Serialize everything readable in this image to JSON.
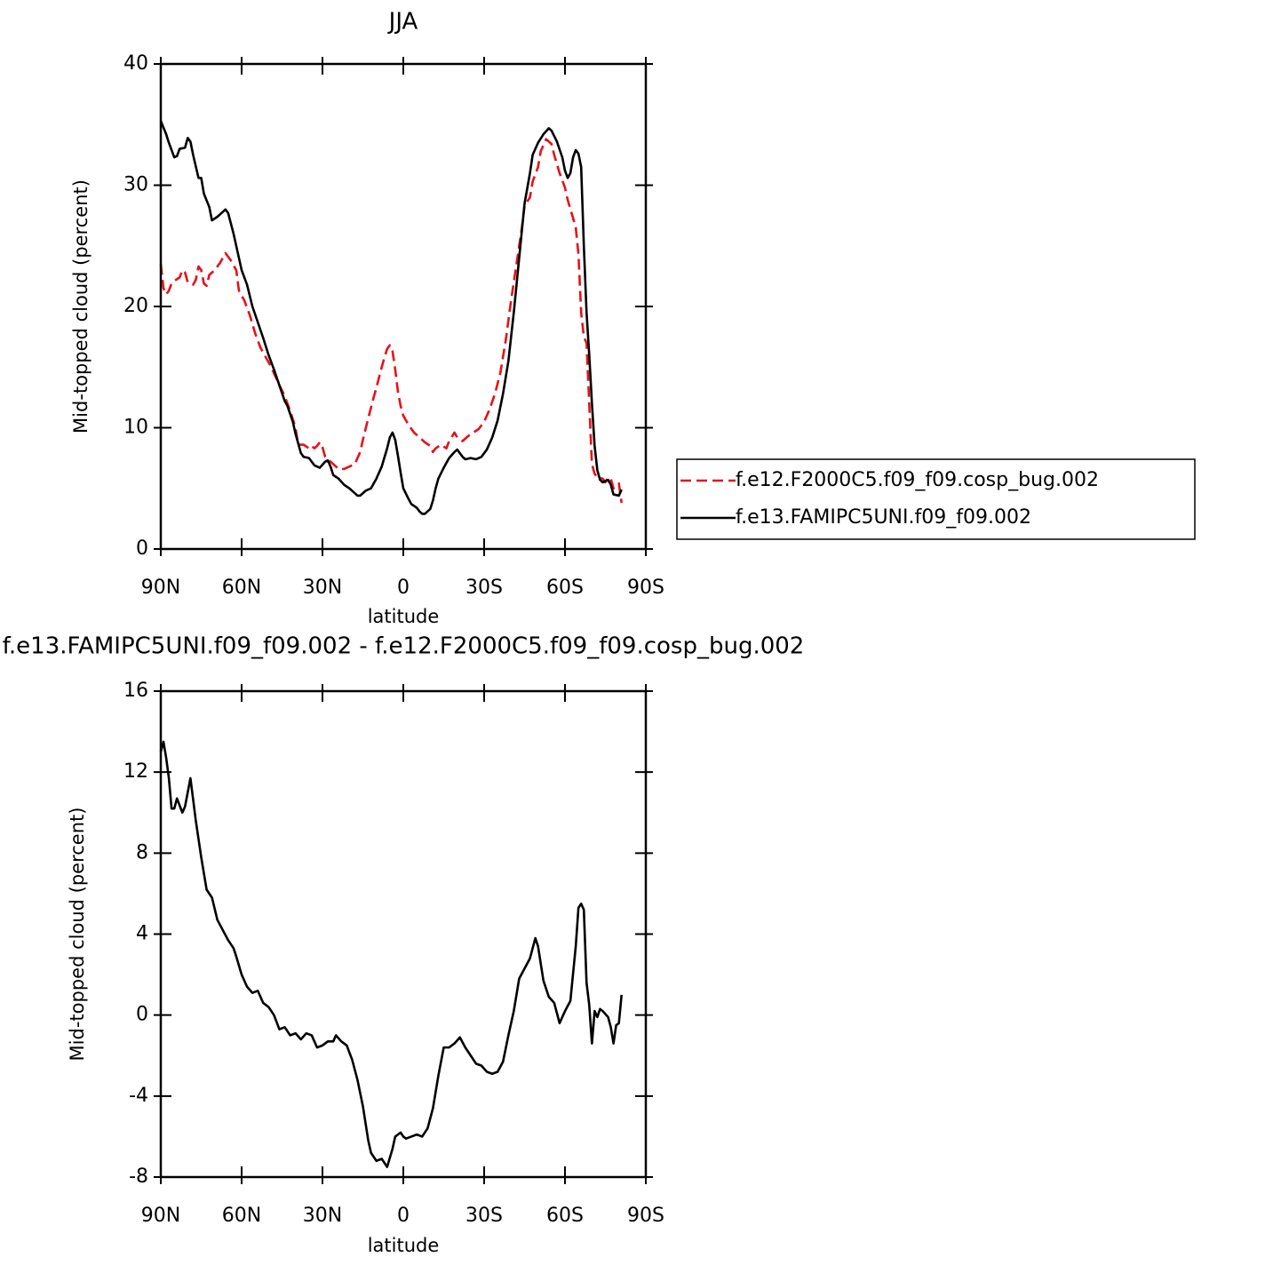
{
  "chart_data": [
    {
      "type": "line",
      "title": "JJA",
      "xlabel": "latitude",
      "ylabel": "Mid-topped cloud (percent)",
      "xlim": [
        90,
        -90
      ],
      "ylim": [
        0,
        40
      ],
      "xticks": [
        {
          "value": 90,
          "label": "90N"
        },
        {
          "value": 60,
          "label": "60N"
        },
        {
          "value": 30,
          "label": "30N"
        },
        0,
        {
          "value": -30,
          "label": "30S"
        },
        {
          "value": -60,
          "label": "60S"
        },
        {
          "value": -90,
          "label": "90S"
        }
      ],
      "yticks": [
        0,
        10,
        20,
        30,
        40
      ],
      "legend": "right",
      "series": [
        {
          "name": "f.e12.F2000C5.f09_f09.cosp_bug.002",
          "color": "#e8101a",
          "dashed": true,
          "x": [
            90,
            89,
            88,
            87,
            86,
            85,
            83,
            82,
            81,
            80,
            78,
            77,
            76,
            75,
            74,
            73,
            72,
            70,
            68,
            66,
            64,
            62,
            61,
            59,
            57,
            55,
            53,
            51,
            49,
            48,
            46,
            44,
            42,
            40,
            39,
            37,
            35,
            34,
            33,
            32,
            31,
            30,
            29,
            27,
            26,
            24,
            22,
            20,
            18,
            16,
            15,
            13,
            11,
            10,
            8,
            7,
            6,
            5,
            4,
            3,
            2,
            1,
            0,
            -2,
            -4,
            -6,
            -8,
            -10,
            -11,
            -12,
            -14,
            -16,
            -17,
            -19,
            -20,
            -22,
            -24,
            -26,
            -28,
            -30,
            -32,
            -34,
            -36,
            -38,
            -40,
            -42,
            -44,
            -45,
            -47,
            -48,
            -50,
            -51,
            -53,
            -55,
            -56,
            -58,
            -60,
            -61,
            -63,
            -64,
            -65,
            -66,
            -67,
            -68,
            -69,
            -70,
            -71,
            -72,
            -74,
            -75,
            -76,
            -77,
            -78,
            -80,
            -81
          ],
          "values": [
            23.5,
            21.5,
            21.0,
            21.3,
            21.9,
            22.1,
            22.4,
            23.0,
            22.8,
            22.0,
            21.8,
            22.2,
            23.3,
            23.0,
            21.9,
            21.7,
            22.6,
            23.0,
            23.6,
            24.4,
            23.8,
            23.0,
            21.3,
            20.5,
            19.3,
            17.8,
            16.6,
            15.8,
            15.0,
            14.5,
            13.5,
            12.6,
            11.4,
            10.0,
            8.6,
            8.6,
            8.3,
            8.5,
            8.3,
            8.5,
            8.8,
            8.4,
            7.6,
            7.2,
            7.0,
            6.6,
            6.6,
            6.8,
            7.0,
            8.0,
            9.0,
            10.8,
            12.5,
            13.3,
            15.0,
            15.8,
            16.5,
            16.8,
            16.3,
            14.8,
            13.0,
            11.8,
            11.0,
            10.2,
            9.6,
            9.2,
            8.8,
            8.5,
            8.0,
            8.3,
            8.6,
            8.3,
            8.9,
            9.6,
            9.2,
            8.9,
            9.3,
            9.6,
            9.9,
            10.5,
            11.5,
            12.8,
            14.5,
            17.2,
            20.5,
            23.5,
            26.5,
            28.3,
            29.0,
            30.3,
            31.5,
            32.8,
            33.8,
            33.4,
            32.5,
            31.0,
            29.8,
            28.8,
            27.3,
            26.5,
            24.3,
            19.5,
            17.5,
            17.0,
            12.0,
            7.0,
            6.2,
            5.9,
            5.8,
            5.5,
            5.9,
            5.8,
            5.0,
            5.4,
            3.8
          ]
        },
        {
          "name": "f.e13.FAMIPC5UNI.f09_f09.002",
          "color": "#000000",
          "dashed": false,
          "x": [
            90,
            88,
            87,
            85,
            84,
            83,
            81,
            80,
            79,
            78,
            76,
            75,
            74,
            72,
            71,
            69,
            67,
            66,
            65,
            63,
            61,
            60,
            58,
            56,
            54,
            52,
            50,
            48,
            46,
            44,
            43,
            41,
            40,
            38,
            37,
            35,
            33,
            31,
            29,
            28,
            27,
            26,
            24,
            22,
            20,
            18,
            17,
            16,
            14,
            12,
            10,
            8,
            6,
            5,
            4,
            3,
            2,
            1,
            0,
            -2,
            -3,
            -5,
            -6,
            -7,
            -8,
            -10,
            -11,
            -12,
            -13,
            -15,
            -17,
            -19,
            -20,
            -22,
            -23,
            -25,
            -27,
            -29,
            -31,
            -33,
            -35,
            -37,
            -39,
            -41,
            -43,
            -45,
            -47,
            -48,
            -50,
            -52,
            -54,
            -55,
            -57,
            -59,
            -60,
            -61,
            -62,
            -63,
            -64,
            -65,
            -66,
            -67,
            -68,
            -69,
            -70,
            -71,
            -72,
            -73,
            -74,
            -76,
            -77,
            -78,
            -80,
            -81
          ],
          "values": [
            35.3,
            34.2,
            33.5,
            32.3,
            32.4,
            33.0,
            33.1,
            33.9,
            33.6,
            32.5,
            30.6,
            30.6,
            29.3,
            28.2,
            27.1,
            27.4,
            27.8,
            28.0,
            27.7,
            26.0,
            24.0,
            23.0,
            21.8,
            20.0,
            18.7,
            17.4,
            16.0,
            14.8,
            13.5,
            12.2,
            11.8,
            10.5,
            9.5,
            7.9,
            7.6,
            7.5,
            6.9,
            6.7,
            7.2,
            7.3,
            6.8,
            6.1,
            5.8,
            5.3,
            5.0,
            4.6,
            4.4,
            4.4,
            4.8,
            5.0,
            5.8,
            6.8,
            8.3,
            9.2,
            9.6,
            9.0,
            7.7,
            6.3,
            5.0,
            4.1,
            3.7,
            3.4,
            3.1,
            2.9,
            2.9,
            3.3,
            4.0,
            5.0,
            5.8,
            6.7,
            7.5,
            8.0,
            8.2,
            7.6,
            7.4,
            7.5,
            7.4,
            7.6,
            8.2,
            9.2,
            10.6,
            12.8,
            15.5,
            19.5,
            24.0,
            28.5,
            31.0,
            32.5,
            33.5,
            34.2,
            34.7,
            34.5,
            33.6,
            32.3,
            31.2,
            30.6,
            31.0,
            32.3,
            32.9,
            32.6,
            31.5,
            25.0,
            19.5,
            16.0,
            12.0,
            8.5,
            6.5,
            5.7,
            5.5,
            5.7,
            5.3,
            4.5,
            4.4,
            4.9
          ]
        }
      ]
    },
    {
      "type": "line",
      "title": "f.e13.FAMIPC5UNI.f09_f09.002 - f.e12.F2000C5.f09_f09.cosp_bug.002",
      "xlabel": "latitude",
      "ylabel": "Mid-topped cloud (percent)",
      "xlim": [
        90,
        -90
      ],
      "ylim": [
        -8,
        16
      ],
      "xticks": [
        {
          "value": 90,
          "label": "90N"
        },
        {
          "value": 60,
          "label": "60N"
        },
        {
          "value": 30,
          "label": "30N"
        },
        0,
        {
          "value": -30,
          "label": "30S"
        },
        {
          "value": -60,
          "label": "60S"
        },
        {
          "value": -90,
          "label": "90S"
        }
      ],
      "yticks": [
        -8,
        -4,
        0,
        4,
        8,
        12,
        16
      ],
      "series": [
        {
          "color": "#000000",
          "dashed": false,
          "x": [
            90,
            89,
            88,
            87,
            86,
            85,
            84,
            82,
            81,
            79,
            77,
            75,
            73,
            71,
            69,
            67,
            65,
            63,
            62,
            60,
            58,
            56,
            54,
            52,
            50,
            48,
            46,
            44,
            42,
            40,
            38,
            36,
            34,
            32,
            30,
            28,
            26,
            25,
            23,
            21,
            19,
            17,
            15,
            13,
            12,
            10,
            8,
            6,
            4,
            3,
            1,
            0,
            -1,
            -3,
            -5,
            -7,
            -9,
            -11,
            -13,
            -15,
            -17,
            -19,
            -21,
            -23,
            -25,
            -27,
            -29,
            -31,
            -33,
            -35,
            -37,
            -39,
            -41,
            -43,
            -45,
            -47,
            -49,
            -50,
            -52,
            -54,
            -56,
            -58,
            -60,
            -62,
            -64,
            -65,
            -66,
            -67,
            -68,
            -69,
            -70,
            -71,
            -72,
            -73,
            -74,
            -76,
            -77,
            -78,
            -79,
            -80,
            -81
          ],
          "values": [
            13.0,
            13.5,
            12.7,
            11.7,
            10.2,
            10.2,
            10.7,
            10.0,
            10.3,
            11.7,
            9.6,
            7.8,
            6.2,
            5.8,
            4.7,
            4.2,
            3.7,
            3.3,
            2.9,
            2.0,
            1.4,
            1.1,
            1.2,
            0.6,
            0.4,
            0.0,
            -0.7,
            -0.6,
            -1.0,
            -0.9,
            -1.2,
            -0.9,
            -1.0,
            -1.6,
            -1.5,
            -1.3,
            -1.3,
            -1.0,
            -1.3,
            -1.5,
            -2.2,
            -3.2,
            -4.5,
            -6.2,
            -6.8,
            -7.2,
            -7.1,
            -7.5,
            -6.6,
            -6.0,
            -5.8,
            -6.0,
            -6.1,
            -6.0,
            -5.9,
            -6.0,
            -5.6,
            -4.6,
            -3.0,
            -1.6,
            -1.6,
            -1.4,
            -1.1,
            -1.6,
            -2.0,
            -2.4,
            -2.5,
            -2.8,
            -2.9,
            -2.8,
            -2.3,
            -1.0,
            0.2,
            1.8,
            2.3,
            2.8,
            3.8,
            3.4,
            1.7,
            0.9,
            0.6,
            -0.4,
            0.2,
            0.7,
            3.4,
            5.3,
            5.5,
            5.2,
            1.6,
            0.5,
            -1.4,
            0.2,
            -0.1,
            0.3,
            0.2,
            -0.1,
            -0.6,
            -1.4,
            -0.5,
            -0.4,
            1.0
          ]
        }
      ]
    }
  ]
}
